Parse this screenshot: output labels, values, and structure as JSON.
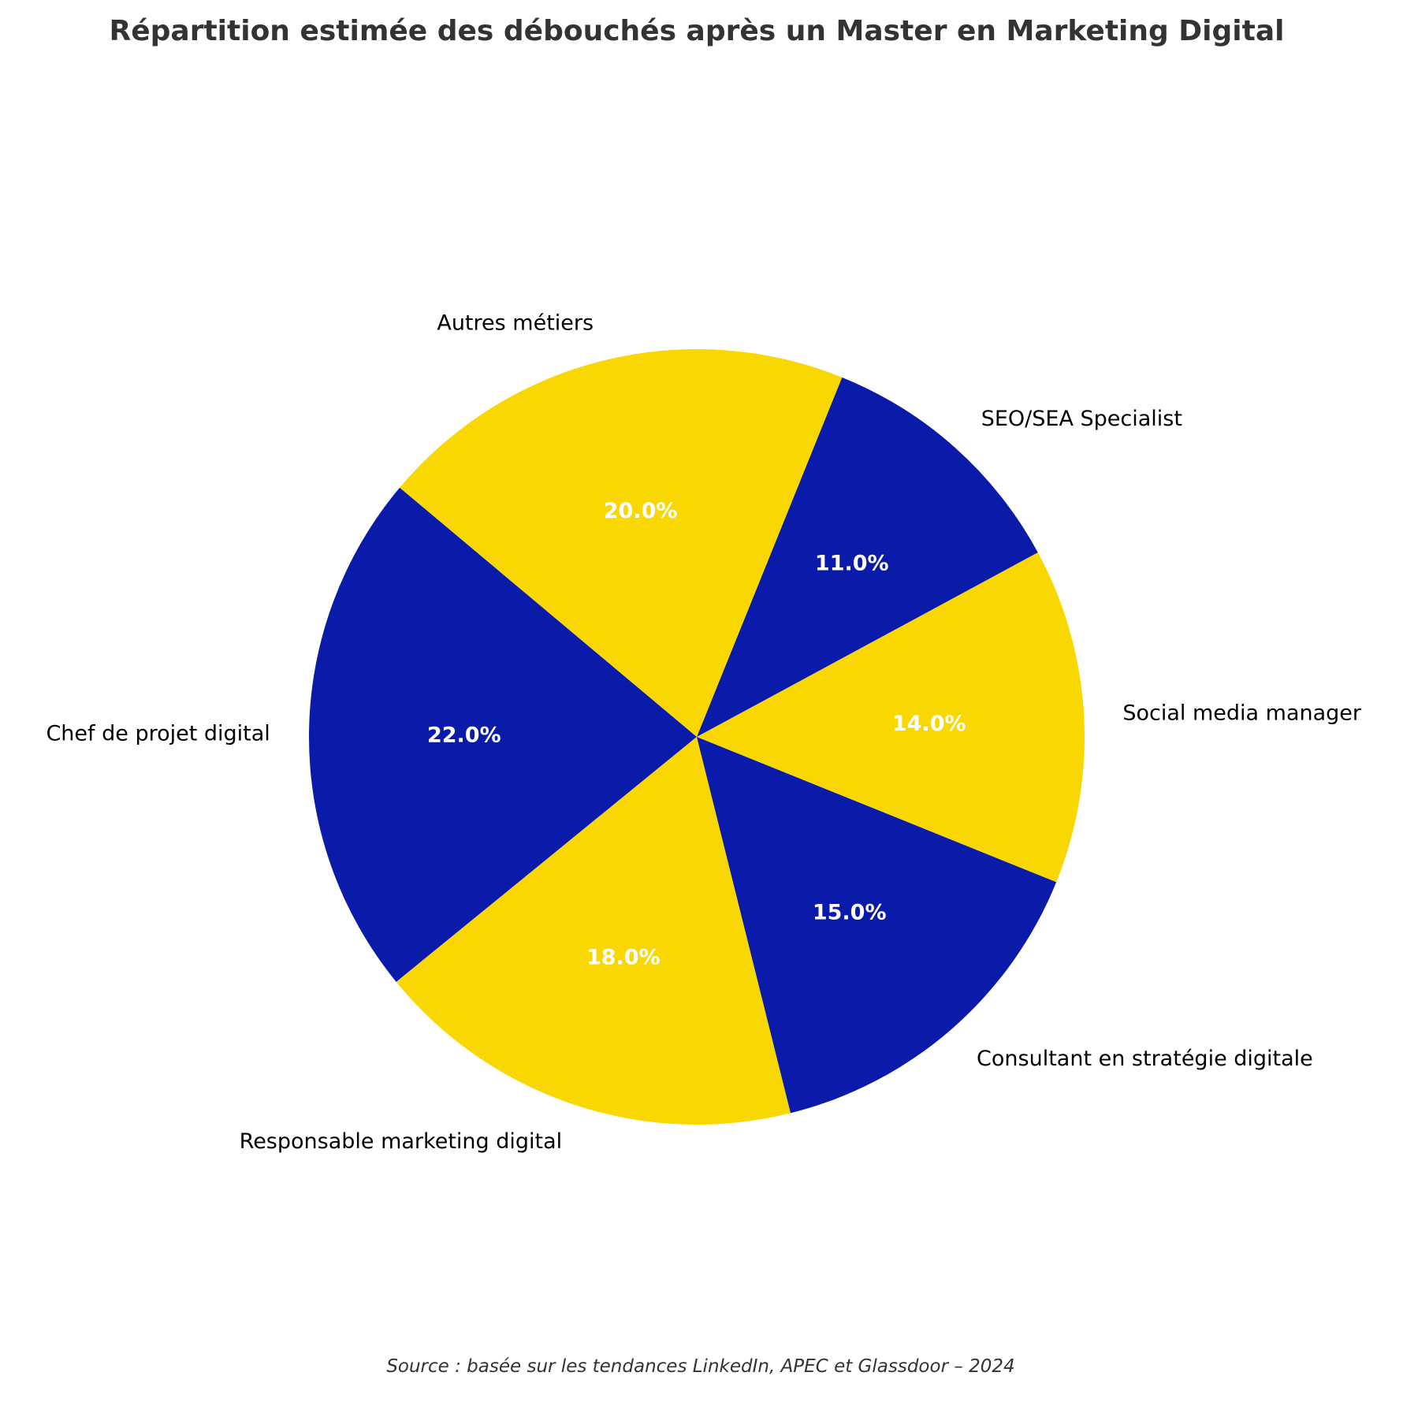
{
  "chart_data": {
    "type": "pie",
    "title": "Répartition estimée des débouchés après un Master en Marketing Digital",
    "source": "Source : basée sur les tendances LinkedIn, APEC et Glassdoor – 2024",
    "start_angle_deg": 140,
    "direction": "counterclockwise",
    "slices": [
      {
        "label": "Chef de projet digital",
        "value": 22,
        "pct_label": "22.0%",
        "color": "#091ba8"
      },
      {
        "label": "Responsable marketing digital",
        "value": 18,
        "pct_label": "18.0%",
        "color": "#f9d702"
      },
      {
        "label": "Consultant en stratégie digitale",
        "value": 15,
        "pct_label": "15.0%",
        "color": "#091ba8"
      },
      {
        "label": "Social media manager",
        "value": 14,
        "pct_label": "14.0%",
        "color": "#f9d702"
      },
      {
        "label": "SEO/SEA Specialist",
        "value": 11,
        "pct_label": "11.0%",
        "color": "#091ba8"
      },
      {
        "label": "Autres métiers",
        "value": 20,
        "pct_label": "20.0%",
        "color": "#f9d702"
      }
    ]
  }
}
